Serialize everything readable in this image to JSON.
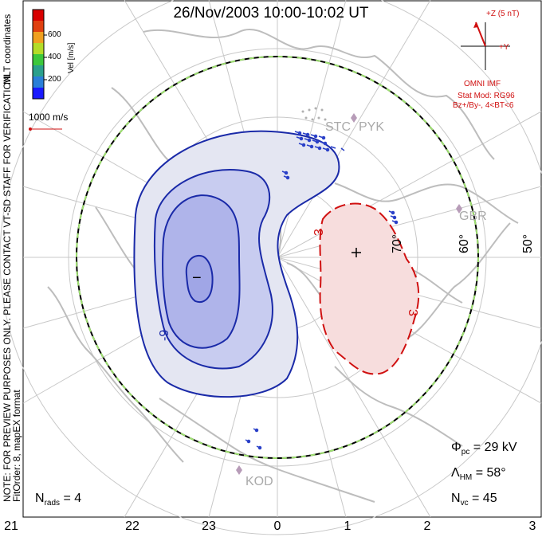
{
  "title": "26/Nov/2003 10:00-10:02 UT",
  "side_notes": {
    "note": "NOTE: FOR PREVIEW PURPOSES ONLY. PLEASE CONTACT VT-SD STAFF FOR VERIFICATION.",
    "fit": "FitOrder: 8, mapEX format",
    "coords": "MLT coordinates"
  },
  "colorbar": {
    "label": "Vel [m/s]",
    "ticks": [
      "600",
      "400",
      "200"
    ],
    "colors": [
      "#1a1aff",
      "#2a7fd8",
      "#2aa08c",
      "#3cc83c",
      "#b4dc28",
      "#f0a020",
      "#e04010",
      "#d80000"
    ]
  },
  "ref_vector": {
    "label": "1000 m/s"
  },
  "imf": {
    "z_label": "+Z (5 nT)",
    "y_label": "+Y",
    "omni": "OMNI IMF",
    "stat_mod": "Stat Mod: RG96",
    "cond": "Bz+/By-, 4<BT<6"
  },
  "stations": {
    "stc": "STC",
    "pyk": "PYK",
    "gbr": "GBR",
    "kod": "KOD"
  },
  "lat_labels": [
    "50°",
    "60°",
    "70°"
  ],
  "contours": {
    "neg": "-9",
    "pos": "3",
    "pos2": "3",
    "min_sign": "−",
    "max_sign": "+"
  },
  "stats": {
    "phi_sym": "Φ",
    "phi_sub": "pc",
    "phi_val": "= 29 kV",
    "lambda_sym": "Λ",
    "lambda_sub": "HM",
    "lambda_val": "= 58°",
    "nvc_sym": "N",
    "nvc_sub": "vc",
    "nvc_val": "= 45",
    "nrads_sym": "N",
    "nrads_sub": "rads",
    "nrads_val": "= 4"
  },
  "mlt_ticks": [
    "21",
    "22",
    "23",
    "0",
    "1",
    "2",
    "3"
  ]
}
